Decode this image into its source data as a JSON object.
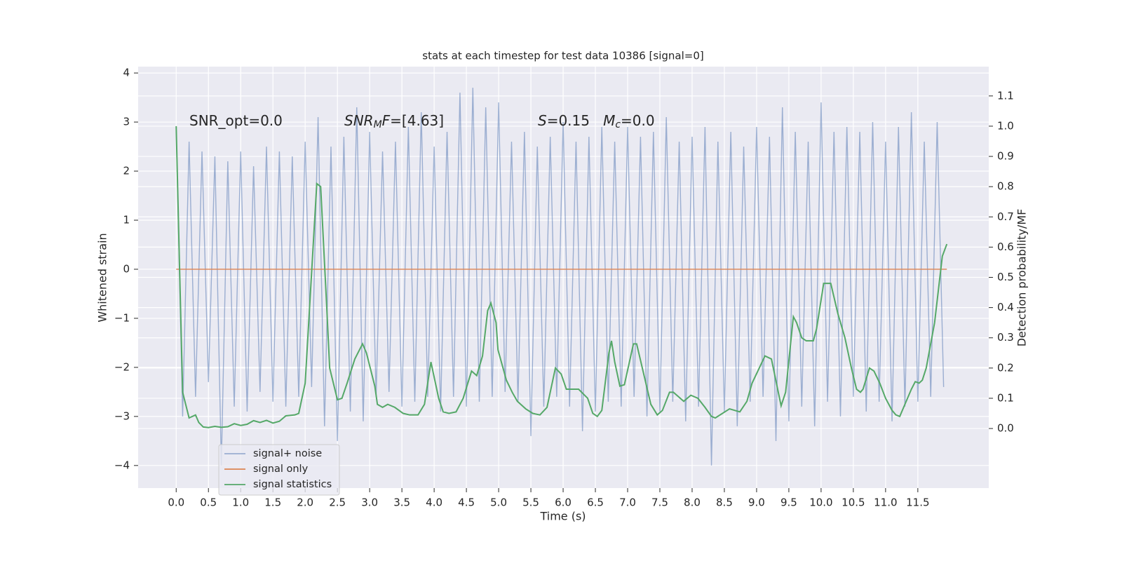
{
  "chart_data": {
    "type": "line",
    "title": "stats at each timestep for test data 10386 [signal=0]",
    "xlabel": "Time (s)",
    "ylabel": "Whitened strain",
    "y2label": "Detection probability/MF",
    "xlim": [
      -0.59,
      12.6
    ],
    "ylim": [
      -4.46,
      4.13
    ],
    "y2lim": [
      -0.197,
      1.197
    ],
    "xticks": [
      {
        "value": 0,
        "label": "0.0"
      },
      0.5,
      {
        "value": 1,
        "label": "1.0"
      },
      1.5,
      {
        "value": 2,
        "label": "2.0"
      },
      2.5,
      {
        "value": 3,
        "label": "3.0"
      },
      3.5,
      {
        "value": 4,
        "label": "4.0"
      },
      4.5,
      {
        "value": 5,
        "label": "5.0"
      },
      5.5,
      {
        "value": 6,
        "label": "6.0"
      },
      6.5,
      {
        "value": 7,
        "label": "7.0"
      },
      7.5,
      {
        "value": 8,
        "label": "8.0"
      },
      8.5,
      {
        "value": 9,
        "label": "9.0"
      },
      9.5,
      {
        "value": 10,
        "label": "10.0"
      },
      10.5,
      {
        "value": 11,
        "label": "11.0"
      },
      11.5
    ],
    "yticks": [
      {
        "value": -4,
        "label": "−4"
      },
      {
        "value": -3,
        "label": "−3"
      },
      {
        "value": -2,
        "label": "−2"
      },
      {
        "value": -1,
        "label": "−1"
      },
      0,
      1,
      2,
      3,
      4
    ],
    "y2ticks": [
      {
        "value": 0,
        "label": "0.0"
      },
      0.1,
      0.2,
      0.3,
      0.4,
      0.5,
      0.6,
      0.7,
      0.8,
      0.9,
      {
        "value": 1,
        "label": "1.0"
      },
      1.1
    ],
    "grid": true,
    "legend": "lower left",
    "annotations": [
      [
        {
          "text": "SNR_opt=0.0",
          "style": "normal"
        }
      ],
      [
        {
          "text": "SNR",
          "style": "italic"
        },
        {
          "text": "M",
          "style": "italic-sub"
        },
        {
          "text": "F",
          "style": "italic"
        },
        {
          "text": "=[4.63]",
          "style": "normal"
        }
      ],
      [
        {
          "text": "S",
          "style": "italic"
        },
        {
          "text": "=0.15   ",
          "style": "normal"
        },
        {
          "text": "M",
          "style": "italic"
        },
        {
          "text": "c",
          "style": "italic-sub"
        },
        {
          "text": "=0.0",
          "style": "normal"
        }
      ]
    ],
    "series": [
      {
        "name": "signal+ noise",
        "color": "#4c72b0",
        "alpha": 0.5,
        "x": [
          0,
          0.1,
          0.2,
          0.3,
          0.4,
          0.5,
          0.6,
          0.7,
          0.8,
          0.9,
          1,
          1.1,
          1.2,
          1.3,
          1.4,
          1.5,
          1.6,
          1.7,
          1.8,
          1.9,
          2,
          2.1,
          2.2,
          2.3,
          2.4,
          2.5,
          2.6,
          2.7,
          2.8,
          2.9,
          3,
          3.1,
          3.2,
          3.3,
          3.4,
          3.5,
          3.6,
          3.7,
          3.8,
          3.9,
          4,
          4.1,
          4.2,
          4.3,
          4.4,
          4.5,
          4.6,
          4.7,
          4.8,
          4.9,
          5,
          5.1,
          5.2,
          5.3,
          5.4,
          5.5,
          5.6,
          5.7,
          5.8,
          5.9,
          6,
          6.1,
          6.2,
          6.3,
          6.4,
          6.5,
          6.6,
          6.7,
          6.8,
          6.9,
          7,
          7.1,
          7.2,
          7.3,
          7.4,
          7.5,
          7.6,
          7.7,
          7.8,
          7.9,
          8,
          8.1,
          8.2,
          8.3,
          8.4,
          8.5,
          8.6,
          8.7,
          8.8,
          8.9,
          9,
          9.1,
          9.2,
          9.3,
          9.4,
          9.5,
          9.6,
          9.7,
          9.8,
          9.9,
          10,
          10.1,
          10.2,
          10.3,
          10.4,
          10.5,
          10.6,
          10.7,
          10.8,
          10.9,
          11,
          11.1,
          11.2,
          11.3,
          11.4,
          11.5,
          11.6,
          11.7,
          11.8,
          11.9
        ],
        "values": [
          2.9,
          -3.0,
          2.6,
          -2.6,
          2.4,
          -2.3,
          2.3,
          -4.0,
          2.2,
          -2.8,
          2.4,
          -2.9,
          2.1,
          -2.5,
          2.5,
          -2.7,
          2.4,
          -2.8,
          2.3,
          -2.6,
          2.6,
          -2.4,
          3.1,
          -3.2,
          2.5,
          -3.5,
          2.7,
          -2.9,
          3.3,
          -3.1,
          2.8,
          -2.6,
          2.4,
          -2.5,
          2.6,
          -2.8,
          2.9,
          -2.7,
          3.2,
          -2.6,
          2.5,
          -2.9,
          2.8,
          -2.6,
          3.6,
          -2.8,
          3.7,
          -2.7,
          3.3,
          -2.6,
          3.4,
          -2.5,
          2.6,
          -2.7,
          2.8,
          -3.4,
          2.5,
          -2.8,
          2.7,
          -2.6,
          3.0,
          -2.8,
          2.6,
          -3.3,
          2.7,
          -2.9,
          2.9,
          -2.7,
          2.6,
          -2.8,
          2.9,
          -2.6,
          2.7,
          -3.0,
          2.8,
          -2.9,
          3.1,
          -2.7,
          2.6,
          -3.1,
          2.7,
          -2.8,
          2.9,
          -4.0,
          2.6,
          -2.9,
          2.8,
          -3.2,
          2.5,
          -2.7,
          2.9,
          -2.6,
          2.7,
          -3.5,
          3.3,
          -3.1,
          2.8,
          -2.8,
          2.6,
          -3.2,
          3.4,
          -2.7,
          2.8,
          -3.0,
          2.9,
          -2.6,
          2.8,
          -2.9,
          3.0,
          -2.7,
          2.6,
          -3.1,
          2.9,
          -2.8,
          3.2,
          -2.7,
          2.6,
          -2.6,
          3.0,
          -2.4
        ]
      },
      {
        "name": "signal only",
        "color": "#dd8452",
        "alpha": 1,
        "x": [
          0,
          11.95
        ],
        "values": [
          0,
          0
        ]
      },
      {
        "name": "signal statistics",
        "color": "#55a868",
        "alpha": 1,
        "axis": "y2",
        "x": [
          0,
          0.05,
          0.1,
          0.2,
          0.3,
          0.35,
          0.42,
          0.5,
          0.6,
          0.7,
          0.8,
          0.9,
          1.0,
          1.1,
          1.2,
          1.3,
          1.4,
          1.5,
          1.6,
          1.7,
          1.84,
          1.9,
          2.0,
          2.18,
          2.24,
          2.33,
          2.38,
          2.5,
          2.57,
          2.65,
          2.77,
          2.89,
          2.95,
          3.08,
          3.12,
          3.2,
          3.28,
          3.39,
          3.52,
          3.62,
          3.75,
          3.85,
          3.95,
          4.07,
          4.14,
          4.23,
          4.34,
          4.45,
          4.58,
          4.66,
          4.75,
          4.83,
          4.88,
          4.96,
          4.99,
          5.12,
          5.21,
          5.29,
          5.42,
          5.53,
          5.64,
          5.75,
          5.88,
          5.97,
          6.05,
          6.13,
          6.24,
          6.38,
          6.46,
          6.53,
          6.6,
          6.71,
          6.75,
          6.8,
          6.88,
          6.95,
          7.09,
          7.14,
          7.25,
          7.36,
          7.46,
          7.54,
          7.65,
          7.71,
          7.87,
          7.98,
          8.09,
          8.2,
          8.3,
          8.36,
          8.58,
          8.74,
          8.85,
          8.93,
          9.13,
          9.23,
          9.38,
          9.45,
          9.57,
          9.62,
          9.7,
          9.77,
          9.88,
          9.93,
          10.04,
          10.15,
          10.26,
          10.37,
          10.47,
          10.55,
          10.61,
          10.65,
          10.75,
          10.82,
          10.91,
          11.0,
          11.1,
          11.16,
          11.22,
          11.32,
          11.4,
          11.46,
          11.52,
          11.57,
          11.63,
          11.76,
          11.88,
          11.95
        ],
        "values": [
          1.0,
          0.55,
          0.12,
          0.035,
          0.045,
          0.02,
          0.005,
          0.003,
          0.007,
          0.004,
          0.006,
          0.016,
          0.01,
          0.014,
          0.026,
          0.02,
          0.027,
          0.018,
          0.024,
          0.042,
          0.045,
          0.05,
          0.15,
          0.81,
          0.8,
          0.42,
          0.2,
          0.095,
          0.1,
          0.15,
          0.23,
          0.28,
          0.25,
          0.14,
          0.08,
          0.07,
          0.08,
          0.07,
          0.05,
          0.045,
          0.045,
          0.08,
          0.22,
          0.1,
          0.055,
          0.05,
          0.055,
          0.1,
          0.19,
          0.175,
          0.24,
          0.39,
          0.415,
          0.35,
          0.26,
          0.16,
          0.12,
          0.09,
          0.065,
          0.05,
          0.045,
          0.07,
          0.2,
          0.18,
          0.13,
          0.13,
          0.13,
          0.1,
          0.05,
          0.04,
          0.06,
          0.25,
          0.29,
          0.22,
          0.14,
          0.145,
          0.28,
          0.28,
          0.18,
          0.08,
          0.045,
          0.06,
          0.12,
          0.12,
          0.09,
          0.11,
          0.1,
          0.07,
          0.04,
          0.035,
          0.065,
          0.055,
          0.09,
          0.15,
          0.24,
          0.23,
          0.075,
          0.12,
          0.37,
          0.35,
          0.3,
          0.29,
          0.29,
          0.33,
          0.48,
          0.48,
          0.38,
          0.3,
          0.2,
          0.13,
          0.12,
          0.13,
          0.2,
          0.19,
          0.15,
          0.1,
          0.06,
          0.045,
          0.04,
          0.09,
          0.13,
          0.155,
          0.15,
          0.16,
          0.2,
          0.35,
          0.57,
          0.61
        ]
      }
    ]
  }
}
